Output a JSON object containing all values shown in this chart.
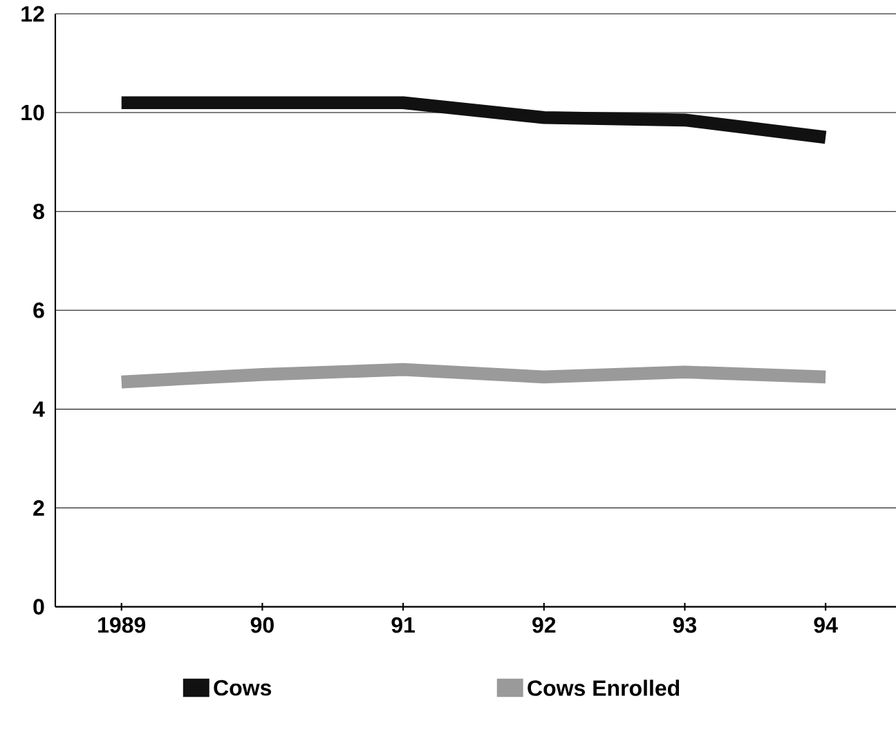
{
  "chart_data": {
    "type": "line",
    "categories": [
      "1989",
      "90",
      "91",
      "92",
      "93",
      "94"
    ],
    "series": [
      {
        "name": "Cows",
        "color": "#111111",
        "values": [
          10.2,
          10.2,
          10.2,
          9.9,
          9.85,
          9.5
        ]
      },
      {
        "name": "Cows Enrolled",
        "color": "#9a9a9a",
        "values": [
          4.55,
          4.7,
          4.8,
          4.65,
          4.75,
          4.65
        ]
      }
    ],
    "ylim": [
      0,
      12
    ],
    "yticks": [
      0,
      2,
      4,
      6,
      8,
      10,
      12
    ],
    "grid": "y",
    "legend": "bottom",
    "marker": "none",
    "line_style": "solid"
  }
}
